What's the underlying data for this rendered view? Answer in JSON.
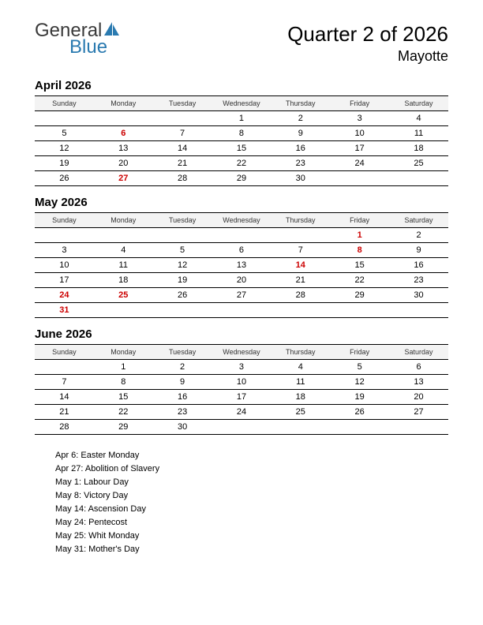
{
  "logo": {
    "top": "General",
    "bottom": "Blue",
    "mark_fill": "#2a7ab0"
  },
  "title": {
    "main": "Quarter 2 of 2026",
    "sub": "Mayotte"
  },
  "colors": {
    "text": "#000000",
    "holiday": "#cc0000",
    "header_bg": "#f3f3f3",
    "rule": "#000000",
    "page_bg": "#ffffff",
    "logo_blue": "#2a7ab0",
    "logo_gray": "#3a3a3a"
  },
  "fonts": {
    "title_main_pt": 26,
    "title_sub_pt": 18,
    "month_title_pt": 15,
    "weekday_pt": 9,
    "day_pt": 11,
    "holiday_list_pt": 11
  },
  "weekdays": [
    "Sunday",
    "Monday",
    "Tuesday",
    "Wednesday",
    "Thursday",
    "Friday",
    "Saturday"
  ],
  "months": [
    {
      "name": "April 2026",
      "weeks": [
        [
          {
            "d": ""
          },
          {
            "d": ""
          },
          {
            "d": ""
          },
          {
            "d": "1"
          },
          {
            "d": "2"
          },
          {
            "d": "3"
          },
          {
            "d": "4"
          }
        ],
        [
          {
            "d": "5"
          },
          {
            "d": "6",
            "h": true
          },
          {
            "d": "7"
          },
          {
            "d": "8"
          },
          {
            "d": "9"
          },
          {
            "d": "10"
          },
          {
            "d": "11"
          }
        ],
        [
          {
            "d": "12"
          },
          {
            "d": "13"
          },
          {
            "d": "14"
          },
          {
            "d": "15"
          },
          {
            "d": "16"
          },
          {
            "d": "17"
          },
          {
            "d": "18"
          }
        ],
        [
          {
            "d": "19"
          },
          {
            "d": "20"
          },
          {
            "d": "21"
          },
          {
            "d": "22"
          },
          {
            "d": "23"
          },
          {
            "d": "24"
          },
          {
            "d": "25"
          }
        ],
        [
          {
            "d": "26"
          },
          {
            "d": "27",
            "h": true
          },
          {
            "d": "28"
          },
          {
            "d": "29"
          },
          {
            "d": "30"
          },
          {
            "d": ""
          },
          {
            "d": ""
          }
        ]
      ]
    },
    {
      "name": "May 2026",
      "weeks": [
        [
          {
            "d": ""
          },
          {
            "d": ""
          },
          {
            "d": ""
          },
          {
            "d": ""
          },
          {
            "d": ""
          },
          {
            "d": "1",
            "h": true
          },
          {
            "d": "2"
          }
        ],
        [
          {
            "d": "3"
          },
          {
            "d": "4"
          },
          {
            "d": "5"
          },
          {
            "d": "6"
          },
          {
            "d": "7"
          },
          {
            "d": "8",
            "h": true
          },
          {
            "d": "9"
          }
        ],
        [
          {
            "d": "10"
          },
          {
            "d": "11"
          },
          {
            "d": "12"
          },
          {
            "d": "13"
          },
          {
            "d": "14",
            "h": true
          },
          {
            "d": "15"
          },
          {
            "d": "16"
          }
        ],
        [
          {
            "d": "17"
          },
          {
            "d": "18"
          },
          {
            "d": "19"
          },
          {
            "d": "20"
          },
          {
            "d": "21"
          },
          {
            "d": "22"
          },
          {
            "d": "23"
          }
        ],
        [
          {
            "d": "24",
            "h": true
          },
          {
            "d": "25",
            "h": true
          },
          {
            "d": "26"
          },
          {
            "d": "27"
          },
          {
            "d": "28"
          },
          {
            "d": "29"
          },
          {
            "d": "30"
          }
        ],
        [
          {
            "d": "31",
            "h": true
          },
          {
            "d": ""
          },
          {
            "d": ""
          },
          {
            "d": ""
          },
          {
            "d": ""
          },
          {
            "d": ""
          },
          {
            "d": ""
          }
        ]
      ]
    },
    {
      "name": "June 2026",
      "weeks": [
        [
          {
            "d": ""
          },
          {
            "d": "1"
          },
          {
            "d": "2"
          },
          {
            "d": "3"
          },
          {
            "d": "4"
          },
          {
            "d": "5"
          },
          {
            "d": "6"
          }
        ],
        [
          {
            "d": "7"
          },
          {
            "d": "8"
          },
          {
            "d": "9"
          },
          {
            "d": "10"
          },
          {
            "d": "11"
          },
          {
            "d": "12"
          },
          {
            "d": "13"
          }
        ],
        [
          {
            "d": "14"
          },
          {
            "d": "15"
          },
          {
            "d": "16"
          },
          {
            "d": "17"
          },
          {
            "d": "18"
          },
          {
            "d": "19"
          },
          {
            "d": "20"
          }
        ],
        [
          {
            "d": "21"
          },
          {
            "d": "22"
          },
          {
            "d": "23"
          },
          {
            "d": "24"
          },
          {
            "d": "25"
          },
          {
            "d": "26"
          },
          {
            "d": "27"
          }
        ],
        [
          {
            "d": "28"
          },
          {
            "d": "29"
          },
          {
            "d": "30"
          },
          {
            "d": ""
          },
          {
            "d": ""
          },
          {
            "d": ""
          },
          {
            "d": ""
          }
        ]
      ]
    }
  ],
  "holidays": [
    "Apr 6: Easter Monday",
    "Apr 27: Abolition of Slavery",
    "May 1: Labour Day",
    "May 8: Victory Day",
    "May 14: Ascension Day",
    "May 24: Pentecost",
    "May 25: Whit Monday",
    "May 31: Mother's Day"
  ]
}
